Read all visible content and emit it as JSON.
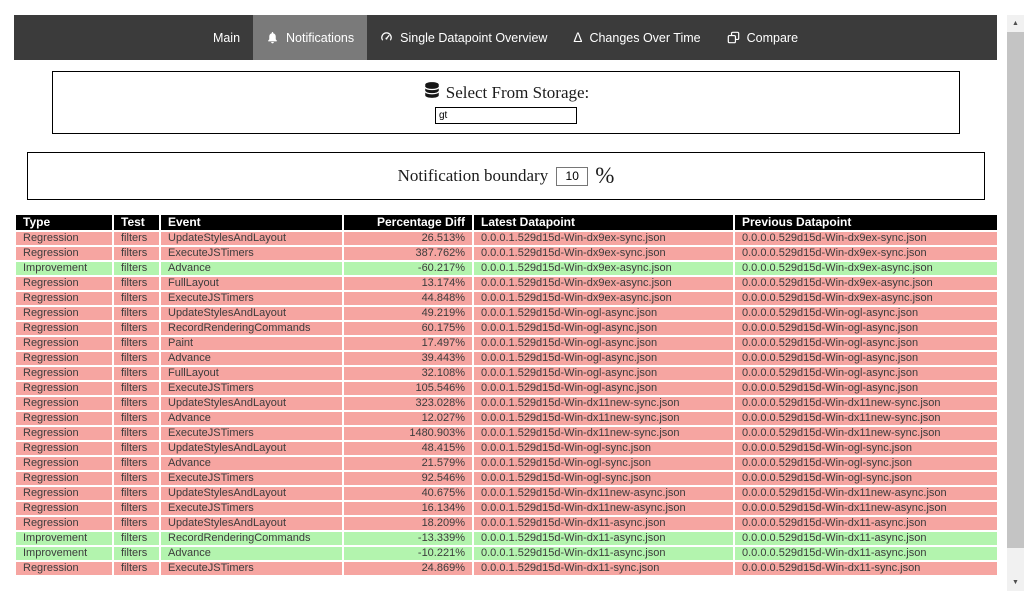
{
  "nav": {
    "tabs": [
      {
        "label": "Main",
        "icon": null,
        "active": false
      },
      {
        "label": "Notifications",
        "icon": "bell-icon",
        "active": true
      },
      {
        "label": "Single Datapoint Overview",
        "icon": "gauge-icon",
        "active": false
      },
      {
        "label": "Changes Over Time",
        "icon": "delta-icon",
        "active": false
      },
      {
        "label": "Compare",
        "icon": "compare-icon",
        "active": false
      }
    ]
  },
  "storage_panel": {
    "label": "Select From Storage:",
    "icon": "database-icon",
    "input_value": "gt"
  },
  "boundary_panel": {
    "label": "Notification boundary",
    "input_value": "10",
    "suffix": "%"
  },
  "table": {
    "columns": [
      "Type",
      "Test",
      "Event",
      "Percentage Diff",
      "Latest Datapoint",
      "Previous Datapoint"
    ],
    "rows": [
      {
        "type": "Regression",
        "test": "filters",
        "event": "UpdateStylesAndLayout",
        "diff": "26.513%",
        "latest": "0.0.0.1.529d15d-Win-dx9ex-sync.json",
        "previous": "0.0.0.0.529d15d-Win-dx9ex-sync.json"
      },
      {
        "type": "Regression",
        "test": "filters",
        "event": "ExecuteJSTimers",
        "diff": "387.762%",
        "latest": "0.0.0.1.529d15d-Win-dx9ex-sync.json",
        "previous": "0.0.0.0.529d15d-Win-dx9ex-sync.json"
      },
      {
        "type": "Improvement",
        "test": "filters",
        "event": "Advance",
        "diff": "-60.217%",
        "latest": "0.0.0.1.529d15d-Win-dx9ex-async.json",
        "previous": "0.0.0.0.529d15d-Win-dx9ex-async.json"
      },
      {
        "type": "Regression",
        "test": "filters",
        "event": "FullLayout",
        "diff": "13.174%",
        "latest": "0.0.0.1.529d15d-Win-dx9ex-async.json",
        "previous": "0.0.0.0.529d15d-Win-dx9ex-async.json"
      },
      {
        "type": "Regression",
        "test": "filters",
        "event": "ExecuteJSTimers",
        "diff": "44.848%",
        "latest": "0.0.0.1.529d15d-Win-dx9ex-async.json",
        "previous": "0.0.0.0.529d15d-Win-dx9ex-async.json"
      },
      {
        "type": "Regression",
        "test": "filters",
        "event": "UpdateStylesAndLayout",
        "diff": "49.219%",
        "latest": "0.0.0.1.529d15d-Win-ogl-async.json",
        "previous": "0.0.0.0.529d15d-Win-ogl-async.json"
      },
      {
        "type": "Regression",
        "test": "filters",
        "event": "RecordRenderingCommands",
        "diff": "60.175%",
        "latest": "0.0.0.1.529d15d-Win-ogl-async.json",
        "previous": "0.0.0.0.529d15d-Win-ogl-async.json"
      },
      {
        "type": "Regression",
        "test": "filters",
        "event": "Paint",
        "diff": "17.497%",
        "latest": "0.0.0.1.529d15d-Win-ogl-async.json",
        "previous": "0.0.0.0.529d15d-Win-ogl-async.json"
      },
      {
        "type": "Regression",
        "test": "filters",
        "event": "Advance",
        "diff": "39.443%",
        "latest": "0.0.0.1.529d15d-Win-ogl-async.json",
        "previous": "0.0.0.0.529d15d-Win-ogl-async.json"
      },
      {
        "type": "Regression",
        "test": "filters",
        "event": "FullLayout",
        "diff": "32.108%",
        "latest": "0.0.0.1.529d15d-Win-ogl-async.json",
        "previous": "0.0.0.0.529d15d-Win-ogl-async.json"
      },
      {
        "type": "Regression",
        "test": "filters",
        "event": "ExecuteJSTimers",
        "diff": "105.546%",
        "latest": "0.0.0.1.529d15d-Win-ogl-async.json",
        "previous": "0.0.0.0.529d15d-Win-ogl-async.json"
      },
      {
        "type": "Regression",
        "test": "filters",
        "event": "UpdateStylesAndLayout",
        "diff": "323.028%",
        "latest": "0.0.0.1.529d15d-Win-dx11new-sync.json",
        "previous": "0.0.0.0.529d15d-Win-dx11new-sync.json"
      },
      {
        "type": "Regression",
        "test": "filters",
        "event": "Advance",
        "diff": "12.027%",
        "latest": "0.0.0.1.529d15d-Win-dx11new-sync.json",
        "previous": "0.0.0.0.529d15d-Win-dx11new-sync.json"
      },
      {
        "type": "Regression",
        "test": "filters",
        "event": "ExecuteJSTimers",
        "diff": "1480.903%",
        "latest": "0.0.0.1.529d15d-Win-dx11new-sync.json",
        "previous": "0.0.0.0.529d15d-Win-dx11new-sync.json"
      },
      {
        "type": "Regression",
        "test": "filters",
        "event": "UpdateStylesAndLayout",
        "diff": "48.415%",
        "latest": "0.0.0.1.529d15d-Win-ogl-sync.json",
        "previous": "0.0.0.0.529d15d-Win-ogl-sync.json"
      },
      {
        "type": "Regression",
        "test": "filters",
        "event": "Advance",
        "diff": "21.579%",
        "latest": "0.0.0.1.529d15d-Win-ogl-sync.json",
        "previous": "0.0.0.0.529d15d-Win-ogl-sync.json"
      },
      {
        "type": "Regression",
        "test": "filters",
        "event": "ExecuteJSTimers",
        "diff": "92.546%",
        "latest": "0.0.0.1.529d15d-Win-ogl-sync.json",
        "previous": "0.0.0.0.529d15d-Win-ogl-sync.json"
      },
      {
        "type": "Regression",
        "test": "filters",
        "event": "UpdateStylesAndLayout",
        "diff": "40.675%",
        "latest": "0.0.0.1.529d15d-Win-dx11new-async.json",
        "previous": "0.0.0.0.529d15d-Win-dx11new-async.json"
      },
      {
        "type": "Regression",
        "test": "filters",
        "event": "ExecuteJSTimers",
        "diff": "16.134%",
        "latest": "0.0.0.1.529d15d-Win-dx11new-async.json",
        "previous": "0.0.0.0.529d15d-Win-dx11new-async.json"
      },
      {
        "type": "Regression",
        "test": "filters",
        "event": "UpdateStylesAndLayout",
        "diff": "18.209%",
        "latest": "0.0.0.1.529d15d-Win-dx11-async.json",
        "previous": "0.0.0.0.529d15d-Win-dx11-async.json"
      },
      {
        "type": "Improvement",
        "test": "filters",
        "event": "RecordRenderingCommands",
        "diff": "-13.339%",
        "latest": "0.0.0.1.529d15d-Win-dx11-async.json",
        "previous": "0.0.0.0.529d15d-Win-dx11-async.json"
      },
      {
        "type": "Improvement",
        "test": "filters",
        "event": "Advance",
        "diff": "-10.221%",
        "latest": "0.0.0.1.529d15d-Win-dx11-async.json",
        "previous": "0.0.0.0.529d15d-Win-dx11-async.json"
      },
      {
        "type": "Regression",
        "test": "filters",
        "event": "ExecuteJSTimers",
        "diff": "24.869%",
        "latest": "0.0.0.1.529d15d-Win-dx11-sync.json",
        "previous": "0.0.0.0.529d15d-Win-dx11-sync.json"
      }
    ]
  },
  "colors": {
    "nav_background": "#3b3b3b",
    "nav_active_tab": "#7a7a7a",
    "regression_row": "#f6a5a1",
    "improvement_row": "#b3f4ae",
    "table_header": "#000000"
  }
}
